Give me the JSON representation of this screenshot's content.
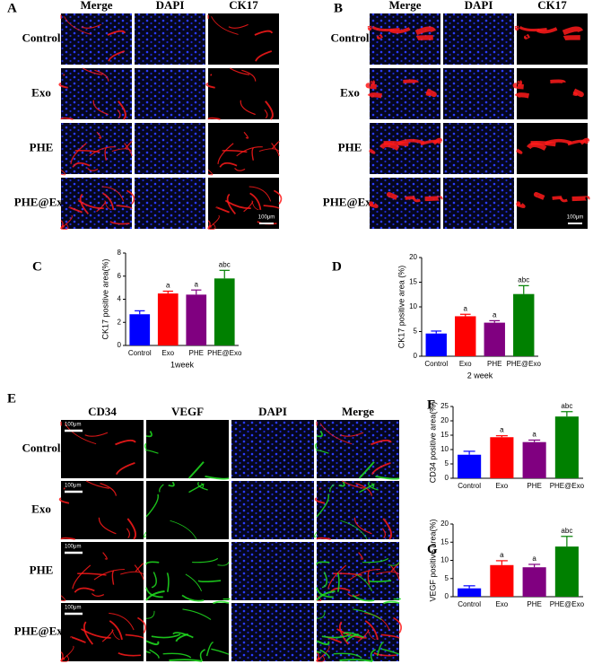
{
  "figure": {
    "panel_a": {
      "letter": "A",
      "columns": [
        "Merge",
        "DAPI",
        "CK17"
      ],
      "rows": [
        "Control",
        "Exo",
        "PHE",
        "PHE@Exo"
      ],
      "scale_bar": "100μm"
    },
    "panel_b": {
      "letter": "B",
      "columns": [
        "Merge",
        "DAPI",
        "CK17"
      ],
      "rows": [
        "Control",
        "Exo",
        "PHE",
        "PHE@Exo"
      ],
      "scale_bar": "100μm"
    },
    "panel_e": {
      "letter": "E",
      "columns": [
        "CD34",
        "VEGF",
        "DAPI",
        "Merge"
      ],
      "rows": [
        "Control",
        "Exo",
        "PHE",
        "PHE@Exo"
      ],
      "scale_bar": "100μm"
    }
  },
  "chart_data": [
    {
      "type": "bar",
      "panel_label": "C",
      "y_label": "CK17 positive area(%)",
      "x_label": "1week",
      "categories": [
        "Control",
        "Exo",
        "PHE",
        "PHE@Exo"
      ],
      "values": [
        2.7,
        4.5,
        4.4,
        5.8
      ],
      "errors": [
        0.3,
        0.2,
        0.4,
        0.7
      ],
      "annotations": [
        null,
        "a",
        "a",
        "abc"
      ],
      "colors": [
        "#0000ff",
        "#ff0000",
        "#800080",
        "#008000"
      ],
      "ylim": [
        0,
        8
      ],
      "yticks": [
        0,
        2,
        4,
        6,
        8
      ]
    },
    {
      "type": "bar",
      "panel_label": "D",
      "y_label": "CK17 positive area (%)",
      "x_label": "2 week",
      "categories": [
        "Control",
        "Exo",
        "PHE",
        "PHE@Exo"
      ],
      "values": [
        4.6,
        8.1,
        6.8,
        12.6
      ],
      "errors": [
        0.5,
        0.4,
        0.4,
        1.7
      ],
      "annotations": [
        null,
        "a",
        "a",
        "abc"
      ],
      "colors": [
        "#0000ff",
        "#ff0000",
        "#800080",
        "#008000"
      ],
      "ylim": [
        0,
        20
      ],
      "yticks": [
        0,
        5,
        10,
        15,
        20
      ]
    },
    {
      "type": "bar",
      "panel_label": "F",
      "y_label": "CD34 positive area(%)",
      "categories": [
        "Control",
        "Exo",
        "PHE",
        "PHE@Exo"
      ],
      "values": [
        8.2,
        14.3,
        12.6,
        21.5
      ],
      "errors": [
        1.2,
        0.5,
        0.7,
        1.7
      ],
      "annotations": [
        null,
        "a",
        "a",
        "abc"
      ],
      "colors": [
        "#0000ff",
        "#ff0000",
        "#800080",
        "#008000"
      ],
      "ylim": [
        0,
        25
      ],
      "yticks": [
        0,
        5,
        10,
        15,
        20,
        25
      ]
    },
    {
      "type": "bar",
      "panel_label": "G",
      "y_label": "VEGF positive area(%)",
      "categories": [
        "Control",
        "Exo",
        "PHE",
        "PHE@Exo"
      ],
      "values": [
        2.3,
        8.7,
        8.1,
        13.8
      ],
      "errors": [
        0.7,
        1.2,
        0.8,
        2.8
      ],
      "annotations": [
        null,
        "a",
        "a",
        "abc"
      ],
      "colors": [
        "#0000ff",
        "#ff0000",
        "#800080",
        "#008000"
      ],
      "ylim": [
        0,
        20
      ],
      "yticks": [
        0,
        5,
        10,
        15,
        20
      ]
    }
  ]
}
